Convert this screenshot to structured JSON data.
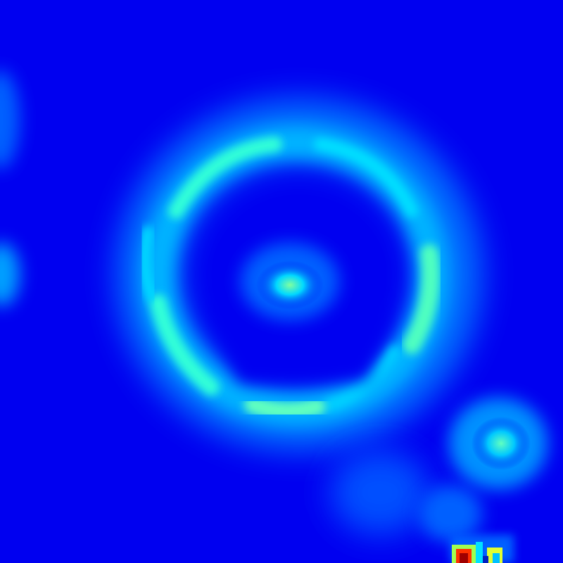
{
  "image": {
    "subject": "gravitational-lens-ring",
    "colormap": "jet",
    "colors": {
      "background": "#0000f0",
      "faint": "#0050ff",
      "mid": "#00c8ff",
      "bright": "#40ffd0",
      "peak": "#c0ff40",
      "hot": "#ff3000",
      "max": "#a00000"
    },
    "features": [
      {
        "name": "einstein-ring",
        "kind": "ring"
      },
      {
        "name": "central-lens-galaxy",
        "kind": "blob"
      },
      {
        "name": "companion-source",
        "kind": "blob"
      },
      {
        "name": "left-edge-source",
        "kind": "blob"
      },
      {
        "name": "bright-pixel-cluster",
        "kind": "pixels"
      }
    ]
  }
}
